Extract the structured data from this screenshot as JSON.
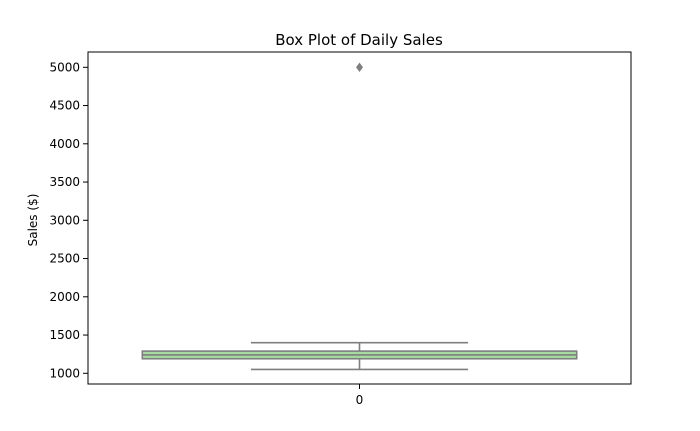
{
  "chart_data": {
    "type": "box",
    "title": "Box Plot of Daily Sales",
    "xlabel": "",
    "ylabel": "Sales ($)",
    "categories": [
      "0"
    ],
    "ylim": [
      860,
      5200
    ],
    "yticks": [
      1000,
      1500,
      2000,
      2500,
      3000,
      3500,
      4000,
      4500,
      5000
    ],
    "grid": false,
    "boxes": [
      {
        "category": "0",
        "whisker_low": 1050,
        "q1": 1190,
        "median": 1240,
        "q3": 1290,
        "whisker_high": 1400,
        "outliers": [
          5000
        ]
      }
    ],
    "colors": {
      "box_fill": "#a6dba0",
      "line": "#7f7f7f",
      "outlier": "#7f7f7f",
      "axes": "#000000"
    }
  }
}
